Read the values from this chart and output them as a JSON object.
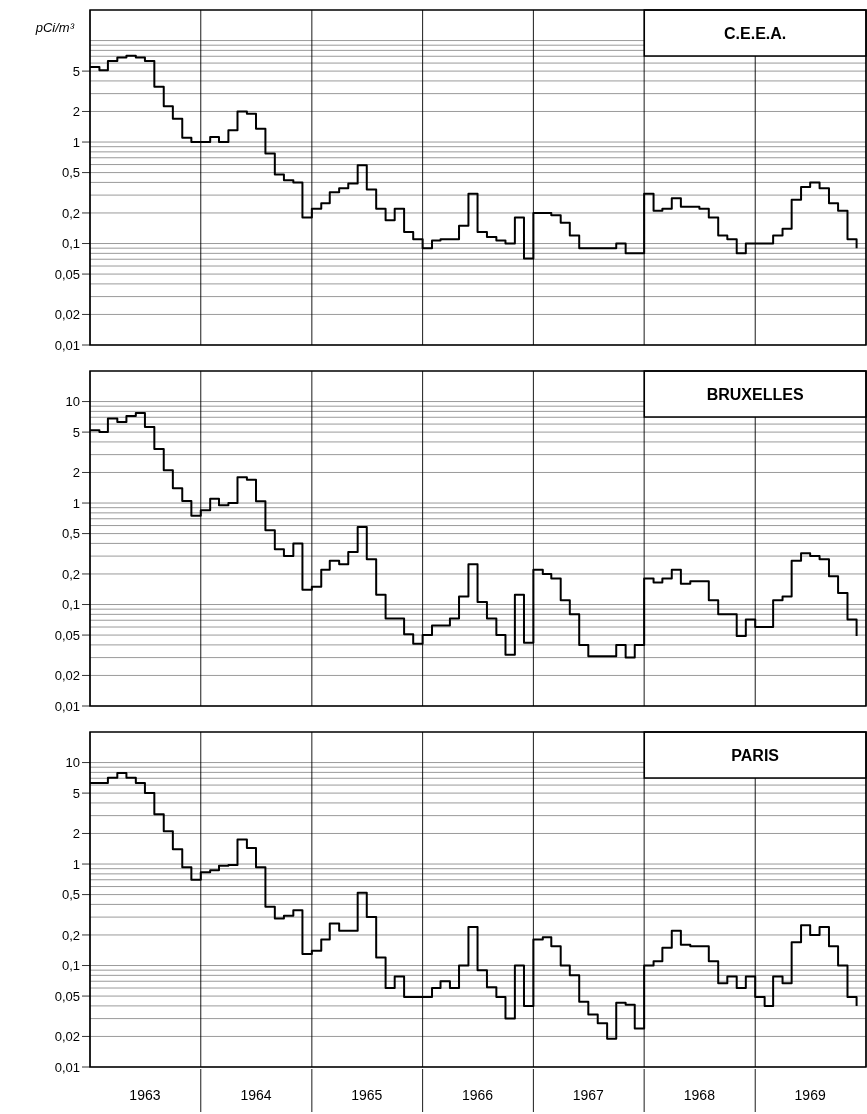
{
  "chart_data": [
    {
      "type": "step",
      "title": "C.E.E.A.",
      "ylabel": "pCi/m³",
      "grid": true,
      "tick_labels": "y",
      "x": [
        "1963-01",
        "1963-02",
        "1963-03",
        "1963-04",
        "1963-05",
        "1963-06",
        "1963-07",
        "1963-08",
        "1963-09",
        "1963-10",
        "1963-11",
        "1963-12",
        "1964-01",
        "1964-02",
        "1964-03",
        "1964-04",
        "1964-05",
        "1964-06",
        "1964-07",
        "1964-08",
        "1964-09",
        "1964-10",
        "1964-11",
        "1964-12",
        "1965-01",
        "1965-02",
        "1965-03",
        "1965-04",
        "1965-05",
        "1965-06",
        "1965-07",
        "1965-08",
        "1965-09",
        "1965-10",
        "1965-11",
        "1965-12",
        "1966-01",
        "1966-02",
        "1966-03",
        "1966-04",
        "1966-05",
        "1966-06",
        "1966-07",
        "1966-08",
        "1966-09",
        "1966-10",
        "1966-11",
        "1966-12",
        "1967-01",
        "1967-02",
        "1967-03",
        "1967-04",
        "1967-05",
        "1967-06",
        "1967-07",
        "1967-08",
        "1967-09",
        "1967-10",
        "1967-11",
        "1967-12",
        "1968-01",
        "1968-02",
        "1968-03",
        "1968-04",
        "1968-05",
        "1968-06",
        "1968-07",
        "1968-08",
        "1968-09",
        "1968-10",
        "1968-11",
        "1968-12",
        "1969-01",
        "1969-02",
        "1969-03",
        "1969-04",
        "1969-05",
        "1969-06",
        "1969-07",
        "1969-08",
        "1969-09",
        "1969-10",
        "1969-11",
        "1969-12"
      ],
      "series": [
        {
          "color": "#000000",
          "values": [
            5.5,
            5.1,
            6.3,
            6.8,
            7.1,
            6.8,
            6.3,
            3.5,
            2.25,
            1.7,
            1.1,
            1.0,
            1.0,
            1.12,
            1.0,
            1.31,
            2.0,
            1.9,
            1.35,
            0.77,
            0.48,
            0.42,
            0.4,
            0.18,
            0.22,
            0.25,
            0.32,
            0.35,
            0.39,
            0.59,
            0.34,
            0.22,
            0.17,
            0.22,
            0.13,
            0.11,
            0.09,
            0.107,
            0.11,
            0.11,
            0.15,
            0.31,
            0.13,
            0.116,
            0.107,
            0.1,
            0.18,
            0.071,
            0.2,
            0.2,
            0.19,
            0.16,
            0.12,
            0.09,
            0.09,
            0.09,
            0.09,
            0.1,
            0.08,
            0.08,
            0.31,
            0.21,
            0.22,
            0.28,
            0.23,
            0.23,
            0.22,
            0.18,
            0.12,
            0.11,
            0.08,
            0.1,
            0.1,
            0.1,
            0.12,
            0.14,
            0.27,
            0.36,
            0.4,
            0.35,
            0.25,
            0.21,
            0.11,
            0.09
          ]
        }
      ],
      "log": "y",
      "ylim": [
        0.01,
        20
      ],
      "yticks": [
        {
          "value": 0.01,
          "label": "0,01"
        },
        {
          "value": 0.02,
          "label": "0,02"
        },
        {
          "value": 0.03,
          "label": null
        },
        {
          "value": 0.04,
          "label": null
        },
        {
          "value": 0.05,
          "label": "0,05"
        },
        {
          "value": 0.06,
          "label": null
        },
        {
          "value": 0.07,
          "label": null
        },
        {
          "value": 0.08,
          "label": null
        },
        {
          "value": 0.09,
          "label": null
        },
        {
          "value": 0.1,
          "label": "0,1"
        },
        {
          "value": 0.2,
          "label": "0,2"
        },
        {
          "value": 0.3,
          "label": null
        },
        {
          "value": 0.4,
          "label": null
        },
        {
          "value": 0.5,
          "label": "0,5"
        },
        {
          "value": 0.6,
          "label": null
        },
        {
          "value": 0.7,
          "label": null
        },
        {
          "value": 0.8,
          "label": null
        },
        {
          "value": 0.9,
          "label": null
        },
        1,
        2,
        {
          "value": 3,
          "label": null
        },
        {
          "value": 4,
          "label": null
        },
        5,
        {
          "value": 6,
          "label": null
        },
        {
          "value": 7,
          "label": null
        },
        {
          "value": 8,
          "label": null
        },
        {
          "value": 9,
          "label": null
        },
        {
          "value": 10,
          "label": null
        }
      ],
      "xlim": [
        "1963-01",
        "1970-01"
      ],
      "xticks": [
        {
          "value": "1963-01",
          "label": null
        },
        {
          "value": "1964-01",
          "label": null
        },
        {
          "value": "1965-01",
          "label": null
        },
        {
          "value": "1966-01",
          "label": null
        },
        {
          "value": "1967-01",
          "label": null
        },
        {
          "value": "1968-01",
          "label": null
        },
        {
          "value": "1969-01",
          "label": null
        },
        {
          "value": "1970-01",
          "label": null
        }
      ]
    },
    {
      "type": "step",
      "title": "BRUXELLES",
      "grid": true,
      "tick_labels": "y",
      "x": [
        "1963-01",
        "1963-02",
        "1963-03",
        "1963-04",
        "1963-05",
        "1963-06",
        "1963-07",
        "1963-08",
        "1963-09",
        "1963-10",
        "1963-11",
        "1963-12",
        "1964-01",
        "1964-02",
        "1964-03",
        "1964-04",
        "1964-05",
        "1964-06",
        "1964-07",
        "1964-08",
        "1964-09",
        "1964-10",
        "1964-11",
        "1964-12",
        "1965-01",
        "1965-02",
        "1965-03",
        "1965-04",
        "1965-05",
        "1965-06",
        "1965-07",
        "1965-08",
        "1965-09",
        "1965-10",
        "1965-11",
        "1965-12",
        "1966-01",
        "1966-02",
        "1966-03",
        "1966-04",
        "1966-05",
        "1966-06",
        "1966-07",
        "1966-08",
        "1966-09",
        "1966-10",
        "1966-11",
        "1966-12",
        "1967-01",
        "1967-02",
        "1967-03",
        "1967-04",
        "1967-05",
        "1967-06",
        "1967-07",
        "1967-08",
        "1967-09",
        "1967-10",
        "1967-11",
        "1967-12",
        "1968-01",
        "1968-02",
        "1968-03",
        "1968-04",
        "1968-05",
        "1968-06",
        "1968-07",
        "1968-08",
        "1968-09",
        "1968-10",
        "1968-11",
        "1968-12",
        "1969-01",
        "1969-02",
        "1969-03",
        "1969-04",
        "1969-05",
        "1969-06",
        "1969-07",
        "1969-08",
        "1969-09",
        "1969-10",
        "1969-11",
        "1969-12"
      ],
      "series": [
        {
          "color": "#000000",
          "values": [
            5.2,
            5.0,
            6.8,
            6.3,
            7.2,
            7.7,
            5.6,
            3.4,
            2.1,
            1.4,
            1.05,
            0.75,
            0.85,
            1.1,
            0.95,
            1.0,
            1.8,
            1.7,
            1.04,
            0.54,
            0.35,
            0.3,
            0.4,
            0.14,
            0.15,
            0.22,
            0.27,
            0.25,
            0.33,
            0.58,
            0.28,
            0.125,
            0.073,
            0.073,
            0.051,
            0.041,
            0.05,
            0.062,
            0.062,
            0.073,
            0.12,
            0.25,
            0.106,
            0.073,
            0.05,
            0.032,
            0.125,
            0.042,
            0.22,
            0.2,
            0.18,
            0.11,
            0.08,
            0.04,
            0.031,
            0.031,
            0.031,
            0.04,
            0.03,
            0.04,
            0.18,
            0.165,
            0.18,
            0.22,
            0.16,
            0.17,
            0.17,
            0.11,
            0.08,
            0.08,
            0.049,
            0.071,
            0.06,
            0.06,
            0.11,
            0.12,
            0.27,
            0.32,
            0.3,
            0.28,
            0.19,
            0.13,
            0.071,
            0.049
          ]
        }
      ],
      "log": "y",
      "ylim": [
        0.01,
        20
      ],
      "yticks": [
        {
          "value": 0.01,
          "label": "0,01"
        },
        {
          "value": 0.02,
          "label": "0,02"
        },
        {
          "value": 0.03,
          "label": null
        },
        {
          "value": 0.04,
          "label": null
        },
        {
          "value": 0.05,
          "label": "0,05"
        },
        {
          "value": 0.06,
          "label": null
        },
        {
          "value": 0.07,
          "label": null
        },
        {
          "value": 0.08,
          "label": null
        },
        {
          "value": 0.09,
          "label": null
        },
        {
          "value": 0.1,
          "label": "0,1"
        },
        {
          "value": 0.2,
          "label": "0,2"
        },
        {
          "value": 0.3,
          "label": null
        },
        {
          "value": 0.4,
          "label": null
        },
        {
          "value": 0.5,
          "label": "0,5"
        },
        {
          "value": 0.6,
          "label": null
        },
        {
          "value": 0.7,
          "label": null
        },
        {
          "value": 0.8,
          "label": null
        },
        {
          "value": 0.9,
          "label": null
        },
        1,
        2,
        {
          "value": 3,
          "label": null
        },
        {
          "value": 4,
          "label": null
        },
        5,
        {
          "value": 6,
          "label": null
        },
        {
          "value": 7,
          "label": null
        },
        {
          "value": 8,
          "label": null
        },
        {
          "value": 9,
          "label": null
        },
        10
      ],
      "xlim": [
        "1963-01",
        "1970-01"
      ],
      "xticks": [
        {
          "value": "1963-01",
          "label": null
        },
        {
          "value": "1964-01",
          "label": null
        },
        {
          "value": "1965-01",
          "label": null
        },
        {
          "value": "1966-01",
          "label": null
        },
        {
          "value": "1967-01",
          "label": null
        },
        {
          "value": "1968-01",
          "label": null
        },
        {
          "value": "1969-01",
          "label": null
        },
        {
          "value": "1970-01",
          "label": null
        }
      ]
    },
    {
      "type": "step",
      "title": "PARIS",
      "grid": true,
      "x": [
        "1963-01",
        "1963-02",
        "1963-03",
        "1963-04",
        "1963-05",
        "1963-06",
        "1963-07",
        "1963-08",
        "1963-09",
        "1963-10",
        "1963-11",
        "1963-12",
        "1964-01",
        "1964-02",
        "1964-03",
        "1964-04",
        "1964-05",
        "1964-06",
        "1964-07",
        "1964-08",
        "1964-09",
        "1964-10",
        "1964-11",
        "1964-12",
        "1965-01",
        "1965-02",
        "1965-03",
        "1965-04",
        "1965-05",
        "1965-06",
        "1965-07",
        "1965-08",
        "1965-09",
        "1965-10",
        "1965-11",
        "1965-12",
        "1966-01",
        "1966-02",
        "1966-03",
        "1966-04",
        "1966-05",
        "1966-06",
        "1966-07",
        "1966-08",
        "1966-09",
        "1966-10",
        "1966-11",
        "1966-12",
        "1967-01",
        "1967-02",
        "1967-03",
        "1967-04",
        "1967-05",
        "1967-06",
        "1967-07",
        "1967-08",
        "1967-09",
        "1967-10",
        "1967-11",
        "1967-12",
        "1968-01",
        "1968-02",
        "1968-03",
        "1968-04",
        "1968-05",
        "1968-06",
        "1968-07",
        "1968-08",
        "1968-09",
        "1968-10",
        "1968-11",
        "1968-12",
        "1969-01",
        "1969-02",
        "1969-03",
        "1969-04",
        "1969-05",
        "1969-06",
        "1969-07",
        "1969-08",
        "1969-09",
        "1969-10",
        "1969-11",
        "1969-12"
      ],
      "series": [
        {
          "color": "#000000",
          "values": [
            6.3,
            6.3,
            7.1,
            7.9,
            7.1,
            6.3,
            5.0,
            3.1,
            2.1,
            1.4,
            0.93,
            0.7,
            0.83,
            0.87,
            0.96,
            0.98,
            1.74,
            1.44,
            0.93,
            0.38,
            0.29,
            0.31,
            0.35,
            0.13,
            0.14,
            0.18,
            0.26,
            0.22,
            0.22,
            0.52,
            0.3,
            0.12,
            0.06,
            0.078,
            0.049,
            0.049,
            0.049,
            0.06,
            0.07,
            0.06,
            0.1,
            0.24,
            0.09,
            0.061,
            0.049,
            0.03,
            0.1,
            0.04,
            0.18,
            0.19,
            0.155,
            0.1,
            0.08,
            0.044,
            0.033,
            0.027,
            0.019,
            0.043,
            0.041,
            0.024,
            0.1,
            0.11,
            0.15,
            0.22,
            0.16,
            0.155,
            0.155,
            0.11,
            0.067,
            0.078,
            0.06,
            0.078,
            0.049,
            0.04,
            0.078,
            0.067,
            0.17,
            0.25,
            0.2,
            0.24,
            0.155,
            0.1,
            0.049,
            0.04
          ]
        }
      ],
      "log": "y",
      "ylim": [
        0.01,
        20
      ],
      "yticks": [
        {
          "value": 0.01,
          "label": "0,01"
        },
        {
          "value": 0.02,
          "label": "0,02"
        },
        {
          "value": 0.03,
          "label": null
        },
        {
          "value": 0.04,
          "label": null
        },
        {
          "value": 0.05,
          "label": "0,05"
        },
        {
          "value": 0.06,
          "label": null
        },
        {
          "value": 0.07,
          "label": null
        },
        {
          "value": 0.08,
          "label": null
        },
        {
          "value": 0.09,
          "label": null
        },
        {
          "value": 0.1,
          "label": "0,1"
        },
        {
          "value": 0.2,
          "label": "0,2"
        },
        {
          "value": 0.3,
          "label": null
        },
        {
          "value": 0.4,
          "label": null
        },
        {
          "value": 0.5,
          "label": "0,5"
        },
        {
          "value": 0.6,
          "label": null
        },
        {
          "value": 0.7,
          "label": null
        },
        {
          "value": 0.8,
          "label": null
        },
        {
          "value": 0.9,
          "label": null
        },
        1,
        2,
        {
          "value": 3,
          "label": null
        },
        {
          "value": 4,
          "label": null
        },
        5,
        {
          "value": 6,
          "label": null
        },
        {
          "value": 7,
          "label": null
        },
        {
          "value": 8,
          "label": null
        },
        {
          "value": 9,
          "label": null
        },
        10
      ],
      "xlim": [
        "1963-01",
        "1970-01"
      ],
      "xticks": [
        {
          "value": "1963-01",
          "label": null
        },
        {
          "value": "1963-07",
          "label": "1963"
        },
        {
          "value": "1964-01",
          "label": null
        },
        {
          "value": "1964-07",
          "label": "1964"
        },
        {
          "value": "1965-01",
          "label": null
        },
        {
          "value": "1965-07",
          "label": "1965"
        },
        {
          "value": "1966-01",
          "label": null
        },
        {
          "value": "1966-07",
          "label": "1966"
        },
        {
          "value": "1967-01",
          "label": null
        },
        {
          "value": "1967-07",
          "label": "1967"
        },
        {
          "value": "1968-01",
          "label": null
        },
        {
          "value": "1968-07",
          "label": "1968"
        },
        {
          "value": "1969-01",
          "label": null
        },
        {
          "value": "1969-07",
          "label": "1969"
        },
        {
          "value": "1970-01",
          "label": null
        }
      ]
    }
  ]
}
